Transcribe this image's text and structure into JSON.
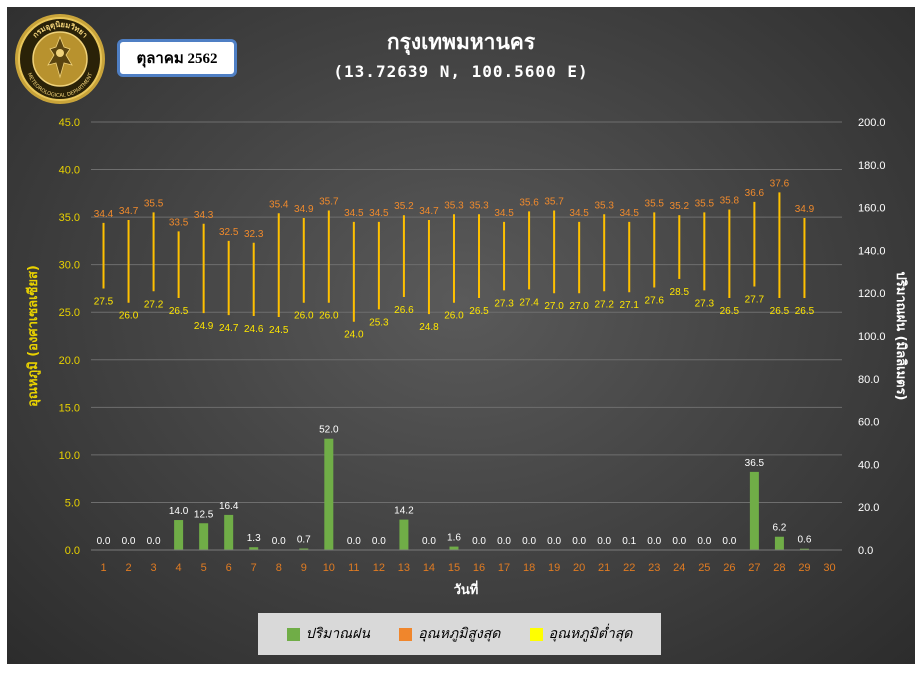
{
  "header": {
    "title": "กรุงเทพมหานคร",
    "subtitle": "(13.72639 N, 100.5600 E)",
    "month_label": "ตุลาคม 2562"
  },
  "logo": {
    "icon": "meteorological-department-seal-icon",
    "text": "กรมอุตุนิยมวิทยา METEOROLOGICAL DEPARTMENT"
  },
  "legend": {
    "items": [
      {
        "label": "ปริมาณฝน",
        "color": "#70ad47"
      },
      {
        "label": "อุณหภูมิสูงสุด",
        "color": "#f0862c"
      },
      {
        "label": "อุณหภูมิต่ำสุด",
        "color": "#ffff00"
      }
    ]
  },
  "colors": {
    "rain_bar": "#70ad47",
    "range_line": "#ffc000",
    "max_label": "#f08a2c",
    "min_label": "#ffe600",
    "left_axis": "#e8d100",
    "x_tick": "#e07b22"
  },
  "chart_data": {
    "type": "bar",
    "title": "กรุงเทพมหานคร",
    "subtitle": "(13.72639 N, 100.5600 E)",
    "xlabel": "วันที่",
    "ylabel_left": "อุณหภูมิ (องศาเซลเซียส)",
    "ylabel_right": "ปริมาณฝน (มิลลิเมตร)",
    "ylim_left": [
      0,
      45
    ],
    "ylim_right": [
      0,
      200
    ],
    "yticks_left": [
      "0.0",
      "5.0",
      "10.0",
      "15.0",
      "20.0",
      "25.0",
      "30.0",
      "35.0",
      "40.0",
      "45.0"
    ],
    "yticks_right": [
      "0.0",
      "20.0",
      "40.0",
      "60.0",
      "80.0",
      "100.0",
      "120.0",
      "140.0",
      "160.0",
      "180.0",
      "200.0"
    ],
    "categories": [
      "1",
      "2",
      "3",
      "4",
      "5",
      "6",
      "7",
      "8",
      "9",
      "10",
      "11",
      "12",
      "13",
      "14",
      "15",
      "16",
      "17",
      "18",
      "19",
      "20",
      "21",
      "22",
      "23",
      "24",
      "25",
      "26",
      "27",
      "28",
      "29",
      "30"
    ],
    "grid": true,
    "legend_position": "bottom",
    "series": [
      {
        "name": "ปริมาณฝน",
        "axis": "right",
        "type": "bar",
        "values": [
          0.0,
          0.0,
          0.0,
          14.0,
          12.5,
          16.4,
          1.3,
          0.0,
          0.7,
          52.0,
          0.0,
          0.0,
          14.2,
          0.0,
          1.6,
          0.0,
          0.0,
          0.0,
          0.0,
          0.0,
          0.0,
          0.1,
          0.0,
          0.0,
          0.0,
          0.0,
          36.5,
          6.2,
          0.6,
          null
        ],
        "labels": [
          "0.0",
          "0.0",
          "0.0",
          "14.0",
          "12.5",
          "16.4",
          "1.3",
          "0.0",
          "0.7",
          "52.0",
          "0.0",
          "0.0",
          "14.2",
          "0.0",
          "1.6",
          "0.0",
          "0.0",
          "0.0",
          "0.0",
          "0.0",
          "0.0",
          "0.1",
          "0.0",
          "0.0",
          "0.0",
          "0.0",
          "36.5",
          "6.2",
          "0.6",
          ""
        ]
      },
      {
        "name": "อุณหภูมิสูงสุด",
        "axis": "left",
        "type": "high",
        "values": [
          34.4,
          34.7,
          35.5,
          33.5,
          34.3,
          32.5,
          32.3,
          35.4,
          34.9,
          35.7,
          34.5,
          34.5,
          35.2,
          34.7,
          35.3,
          35.3,
          34.5,
          35.6,
          35.7,
          34.5,
          35.3,
          34.5,
          35.5,
          35.2,
          35.5,
          35.8,
          36.6,
          37.6,
          34.9,
          null
        ],
        "labels": [
          "34.4",
          "34.7",
          "35.5",
          "33.5",
          "34.3",
          "32.5",
          "32.3",
          "35.4",
          "34.9",
          "35.7",
          "34.5",
          "34.5",
          "35.2",
          "34.7",
          "35.3",
          "35.3",
          "34.5",
          "35.6",
          "35.7",
          "34.5",
          "35.3",
          "34.5",
          "35.5",
          "35.2",
          "35.5",
          "35.8",
          "36.6",
          "37.6",
          "34.9",
          ""
        ]
      },
      {
        "name": "อุณหภูมิต่ำสุด",
        "axis": "left",
        "type": "low",
        "values": [
          27.5,
          26.0,
          27.2,
          26.5,
          24.9,
          24.7,
          24.6,
          24.5,
          26.0,
          26.0,
          24.0,
          25.3,
          26.6,
          24.8,
          26.0,
          26.5,
          27.3,
          27.4,
          27.0,
          27.0,
          27.2,
          27.1,
          27.6,
          28.5,
          27.3,
          26.5,
          27.7,
          26.5,
          26.5,
          null
        ],
        "labels": [
          "27.5",
          "26.0",
          "27.2",
          "26.5",
          "24.9",
          "24.7",
          "24.6",
          "24.5",
          "26.0",
          "26.0",
          "24.0",
          "25.3",
          "26.6",
          "24.8",
          "26.0",
          "26.5",
          "27.3",
          "27.4",
          "27.0",
          "27.0",
          "27.2",
          "27.1",
          "27.6",
          "28.5",
          "27.3",
          "26.5",
          "27.7",
          "26.5",
          "26.5",
          ""
        ]
      }
    ]
  }
}
